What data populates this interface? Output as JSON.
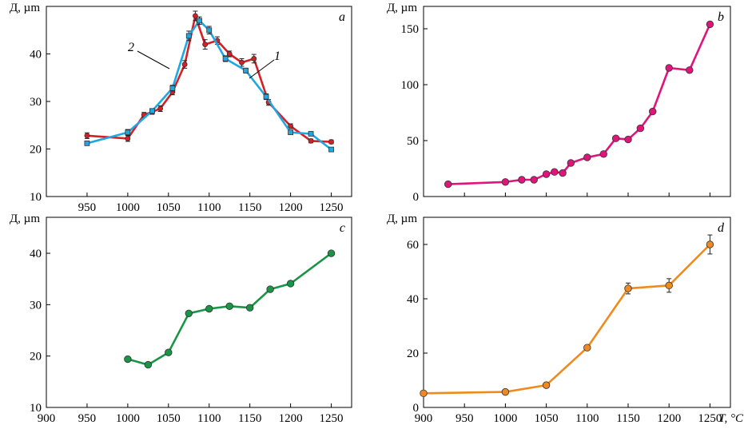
{
  "chart_data": [
    {
      "panel": "a",
      "type": "line",
      "ylabel": "Д, µm",
      "xlabel": "",
      "xlim": [
        900,
        1275
      ],
      "ylim": [
        10,
        50
      ],
      "xticks": [
        "950",
        "1000",
        "1050",
        "1100",
        "1150",
        "1200",
        "1250"
      ],
      "yticks": [
        "10",
        "20",
        "30",
        "40"
      ],
      "series": [
        {
          "name": "1",
          "color": "#d42026",
          "marker": "circle",
          "x": [
            950,
            1000,
            1020,
            1030,
            1040,
            1055,
            1070,
            1083,
            1095,
            1110,
            1125,
            1140,
            1155,
            1173,
            1200,
            1225,
            1250
          ],
          "y": [
            22.8,
            22.2,
            27.2,
            27.8,
            28.5,
            32.0,
            37.8,
            48.0,
            42.0,
            42.8,
            40.0,
            38.2,
            39.0,
            29.8,
            24.8,
            21.7,
            21.5
          ],
          "err": [
            0.6,
            0.6,
            0.5,
            0.5,
            0.6,
            0.6,
            0.8,
            1.0,
            1.0,
            0.8,
            0.6,
            0.8,
            0.9,
            0.6,
            0.5,
            0.4,
            0.4
          ]
        },
        {
          "name": "2",
          "color": "#1ea7e1",
          "marker": "square",
          "x": [
            950,
            1000,
            1030,
            1055,
            1075,
            1088,
            1100,
            1120,
            1145,
            1170,
            1200,
            1225,
            1250
          ],
          "y": [
            21.2,
            23.5,
            28.0,
            32.8,
            43.8,
            47.0,
            45.0,
            39.0,
            36.5,
            31.0,
            23.5,
            23.2,
            19.9
          ],
          "err": [
            0.4,
            0.6,
            0.5,
            0.6,
            1.0,
            0.8,
            0.8,
            0.6,
            0.5,
            0.6,
            0.4,
            0.4,
            0.4
          ]
        }
      ]
    },
    {
      "panel": "b",
      "type": "line",
      "ylabel": "Д, µm",
      "xlabel": "",
      "xlim": [
        900,
        1275
      ],
      "ylim": [
        0,
        170
      ],
      "xticks": [],
      "yticks": [
        "0",
        "50",
        "100",
        "150"
      ],
      "series": [
        {
          "name": "",
          "color": "#e0147a",
          "marker": "circle",
          "x": [
            930,
            1000,
            1020,
            1035,
            1050,
            1060,
            1070,
            1080,
            1100,
            1120,
            1135,
            1150,
            1165,
            1180,
            1200,
            1225,
            1250
          ],
          "y": [
            11,
            13,
            15,
            15,
            20,
            22,
            21,
            30,
            35,
            38,
            52,
            51,
            61,
            76,
            115,
            113,
            154
          ],
          "err": []
        }
      ]
    },
    {
      "panel": "c",
      "type": "line",
      "ylabel": "Д, µm",
      "xlabel": "",
      "xlim": [
        900,
        1275
      ],
      "ylim": [
        10,
        47
      ],
      "xticks": [
        "900",
        "950",
        "1000",
        "1050",
        "1100",
        "1150",
        "1200",
        "1250"
      ],
      "yticks": [
        "10",
        "20",
        "30",
        "40"
      ],
      "series": [
        {
          "name": "",
          "color": "#1a9446",
          "marker": "circle",
          "x": [
            1000,
            1025,
            1050,
            1075,
            1100,
            1125,
            1150,
            1175,
            1200,
            1250
          ],
          "y": [
            19.4,
            18.3,
            20.7,
            28.3,
            29.2,
            29.7,
            29.4,
            33.0,
            34.1,
            40.0
          ],
          "err": []
        }
      ]
    },
    {
      "panel": "d",
      "type": "line",
      "ylabel": "Д, µm",
      "xlabel": "T, °C",
      "xlim": [
        900,
        1275
      ],
      "ylim": [
        0,
        70
      ],
      "xticks": [
        "900",
        "950",
        "1000",
        "1050",
        "1100",
        "1150",
        "1200",
        "1250"
      ],
      "yticks": [
        "0",
        "20",
        "40",
        "60"
      ],
      "series": [
        {
          "name": "",
          "color": "#f08a1e",
          "marker": "circle",
          "x": [
            900,
            1000,
            1050,
            1100,
            1150,
            1200,
            1250
          ],
          "y": [
            5.2,
            5.7,
            8.2,
            22.0,
            43.8,
            44.9,
            60.0
          ],
          "err": [
            0.3,
            0.3,
            0.3,
            0.6,
            2.0,
            2.5,
            3.5
          ]
        }
      ]
    }
  ]
}
